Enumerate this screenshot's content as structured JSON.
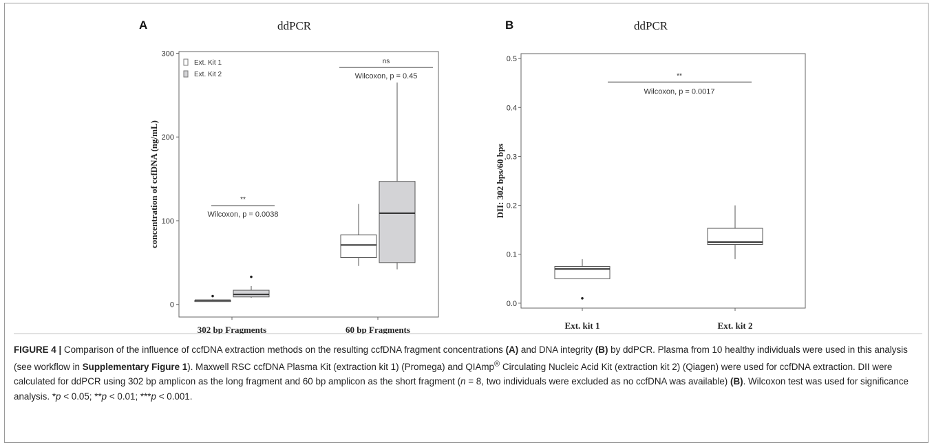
{
  "panels": {
    "a": {
      "label": "A",
      "title": "ddPCR"
    },
    "b": {
      "label": "B",
      "title": "ddPCR"
    }
  },
  "caption": {
    "lead": "FIGURE 4 |",
    "parts": [
      "Comparison of the influence of ccfDNA extraction methods on the resulting ccfDNA fragment concentrations ",
      "(A)",
      " and DNA integrity ",
      "(B)",
      " by ddPCR. Plasma from 10 healthy individuals were used in this analysis (see workflow in ",
      "Supplementary Figure 1",
      "). Maxwell RSC ccfDNA Plasma Kit (extraction kit 1) (Promega) and QIAmp",
      "®",
      " Circulating Nucleic Acid Kit (extraction kit 2) (Qiagen) were used for ccfDNA extraction. DII were calculated for ddPCR using 302 bp amplicon as the long fragment and 60 bp amplicon as the short fragment (",
      "n",
      " = 8, two individuals were excluded as no ccfDNA was available) ",
      "(B)",
      ". Wilcoxon test was used for significance analysis. *",
      "p",
      " < 0.05; **",
      "p",
      " < 0.01; ***",
      "p",
      " < 0.001."
    ]
  },
  "chart_data": [
    {
      "type": "boxplot",
      "panel": "A",
      "title": "ddPCR",
      "xlabel": "",
      "ylabel": "concentration  of ccfDNA  (ng/mL)",
      "ylim": [
        -15,
        302
      ],
      "yticks": [
        0,
        100,
        200,
        300
      ],
      "categories": [
        "302 bp Fragments",
        "60 bp Fragments"
      ],
      "legend": {
        "placement": "top-left",
        "entries": [
          "Ext. Kit 1",
          "Ext. Kit 2"
        ]
      },
      "colors": {
        "Ext. Kit 1": "#ffffff",
        "Ext. Kit 2": "#d3d3d6"
      },
      "series": [
        {
          "name": "Ext. Kit 1",
          "boxes": [
            {
              "category": "302 bp Fragments",
              "min": 4,
              "q1": 4,
              "median": 5,
              "q3": 5,
              "max": 6,
              "outliers": [
                10
              ]
            },
            {
              "category": "60 bp Fragments",
              "min": 46,
              "q1": 56,
              "median": 71,
              "q3": 83,
              "max": 120,
              "outliers": []
            }
          ]
        },
        {
          "name": "Ext. Kit 2",
          "boxes": [
            {
              "category": "302 bp Fragments",
              "min": 8,
              "q1": 9,
              "median": 12,
              "q3": 17,
              "max": 22,
              "outliers": [
                33
              ]
            },
            {
              "category": "60 bp Fragments",
              "min": 42,
              "q1": 50,
              "median": 109,
              "q3": 147,
              "max": 265,
              "outliers": []
            }
          ]
        }
      ],
      "annotations": [
        {
          "category": "302 bp Fragments",
          "stars": "**",
          "text": "Wilcoxon, p = 0.0038"
        },
        {
          "category": "60 bp Fragments",
          "stars": "ns",
          "text": "Wilcoxon, p = 0.45"
        }
      ]
    },
    {
      "type": "boxplot",
      "panel": "B",
      "title": "ddPCR",
      "xlabel": "",
      "ylabel": "DII:  302 bps/60 bps",
      "ylim": [
        -0.01,
        0.51
      ],
      "yticks": [
        0.0,
        0.1,
        0.2,
        0.3,
        0.4,
        0.5
      ],
      "ytick_labels": [
        "0.0",
        "0.1",
        "0.2",
        ",0.3",
        "0.4",
        "0.5"
      ],
      "categories": [
        "Ext.  kit 1",
        "Ext.  kit 2"
      ],
      "series": [
        {
          "name": "",
          "boxes": [
            {
              "category": "Ext.  kit 1",
              "min": 0.05,
              "q1": 0.05,
              "median": 0.07,
              "q3": 0.075,
              "max": 0.09,
              "outliers": [
                0.01
              ]
            },
            {
              "category": "Ext.  kit 2",
              "min": 0.09,
              "q1": 0.12,
              "median": 0.125,
              "q3": 0.153,
              "max": 0.2,
              "outliers": []
            }
          ]
        }
      ],
      "annotations": [
        {
          "category": "both",
          "stars": "**",
          "text": "Wilcoxon, p = 0.0017"
        }
      ]
    }
  ]
}
